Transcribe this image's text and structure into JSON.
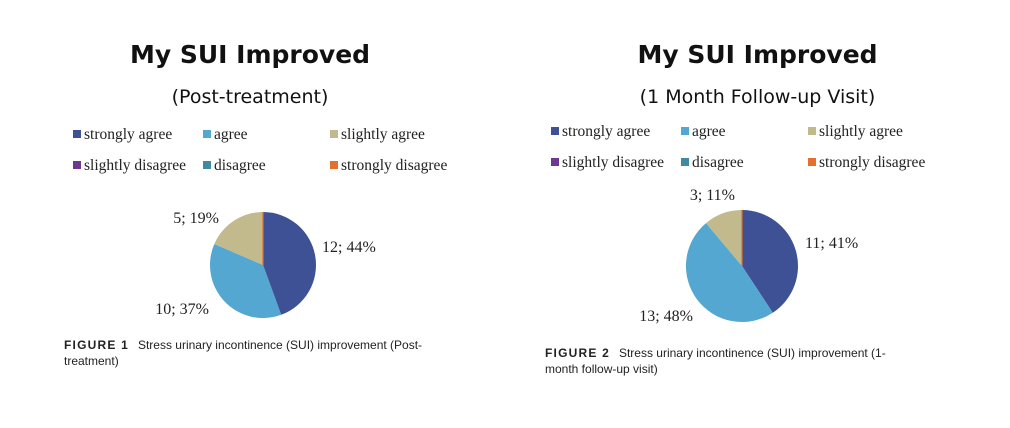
{
  "categories": [
    "strongly agree",
    "agree",
    "slightly agree",
    "slightly disagree",
    "disagree",
    "strongly disagree"
  ],
  "colors": {
    "strongly agree": "#3e5194",
    "agree": "#54a7d1",
    "slightly agree": "#c2b98d",
    "slightly disagree": "#6c3891",
    "disagree": "#3f8aa0",
    "strongly disagree": "#e1712c"
  },
  "chart_data": [
    {
      "type": "pie",
      "title": "My SUI Improved",
      "subtitle": "(Post-treatment)",
      "legend_position": "top",
      "slices": [
        {
          "label": "strongly agree",
          "value": 12,
          "percent": 44,
          "text": "12; 44%"
        },
        {
          "label": "agree",
          "value": 10,
          "percent": 37,
          "text": "10; 37%"
        },
        {
          "label": "slightly agree",
          "value": 5,
          "percent": 19,
          "text": "5; 19%"
        },
        {
          "label": "slightly disagree",
          "value": 0,
          "percent": 0,
          "text": ""
        },
        {
          "label": "disagree",
          "value": 0,
          "percent": 0,
          "text": ""
        },
        {
          "label": "strongly disagree",
          "value": 0,
          "percent": 0,
          "text": ""
        }
      ],
      "caption_label": "FIGURE 1",
      "caption_text": "Stress urinary incontinence (SUI) improvement (Post-",
      "caption_text2": "treatment)"
    },
    {
      "type": "pie",
      "title": "My SUI Improved",
      "subtitle": "(1 Month Follow-up Visit)",
      "legend_position": "top",
      "slices": [
        {
          "label": "strongly agree",
          "value": 11,
          "percent": 41,
          "text": "11; 41%"
        },
        {
          "label": "agree",
          "value": 13,
          "percent": 48,
          "text": "13; 48%"
        },
        {
          "label": "slightly agree",
          "value": 3,
          "percent": 11,
          "text": "3; 11%"
        },
        {
          "label": "slightly disagree",
          "value": 0,
          "percent": 0,
          "text": ""
        },
        {
          "label": "disagree",
          "value": 0,
          "percent": 0,
          "text": ""
        },
        {
          "label": "strongly disagree",
          "value": 0,
          "percent": 0,
          "text": ""
        }
      ],
      "caption_label": "FIGURE 2",
      "caption_text": "Stress urinary incontinence (SUI) improvement (1-",
      "caption_text2": "month follow-up visit)"
    }
  ]
}
